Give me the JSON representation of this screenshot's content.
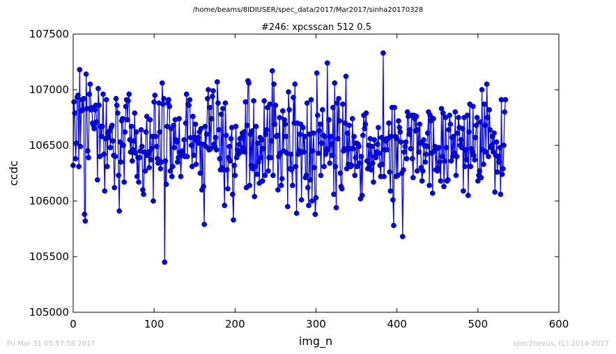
{
  "suptitle": "/home/beams/8IDIUSER/spec_data/2017/Mar2017/sinha20170328",
  "footer": {
    "left": "Fri Mar 31 05:57:58 2017",
    "right": "spec2nexus, (C) 2014-2017"
  },
  "colors": {
    "series": "#0000ff",
    "marker": "#0000ff",
    "footer": "#c0c0c0"
  },
  "chart_data": {
    "type": "line",
    "title": "#246: xpcsscan 512 0.5",
    "xlabel": "img_n",
    "ylabel": "ccdc",
    "xlim": [
      0,
      600
    ],
    "ylim": [
      105000,
      107500
    ],
    "xticks": [
      0,
      100,
      200,
      300,
      400,
      500,
      600
    ],
    "yticks": [
      105000,
      105500,
      106000,
      106500,
      107000,
      107500
    ],
    "grid": false,
    "marker": "circle",
    "series": [
      {
        "x_start": 0,
        "x_step": 1,
        "values": [
          106320,
          106890,
          106790,
          106380,
          106520,
          106930,
          106950,
          106310,
          107180,
          106490,
          106810,
          106910,
          106820,
          106920,
          105880,
          105820,
          107140,
          106830,
          106450,
          106390,
          106960,
          107050,
          106820,
          106840,
          106700,
          106680,
          106650,
          106820,
          106860,
          106710,
          106190,
          107010,
          106860,
          106400,
          106670,
          106580,
          106670,
          106960,
          106420,
          106090,
          106560,
          106910,
          106310,
          106610,
          106570,
          106630,
          106480,
          106660,
          106680,
          106540,
          106410,
          106120,
          106400,
          106920,
          106860,
          106790,
          106230,
          105910,
          106530,
          106350,
          106720,
          106740,
          106500,
          106170,
          106620,
          106850,
          106910,
          106730,
          106900,
          106960,
          106550,
          106440,
          106670,
          106360,
          106460,
          106540,
          106790,
          106430,
          106620,
          106220,
          106390,
          106170,
          106390,
          106450,
          106640,
          106490,
          106100,
          106060,
          106440,
          106270,
          106620,
          106760,
          106410,
          106440,
          106300,
          106730,
          106370,
          106470,
          106580,
          106000,
          106890,
          106950,
          106580,
          106490,
          106380,
          106340,
          106880,
          106620,
          106290,
          106350,
          107060,
          106870,
          106920,
          105450,
          106360,
          106150,
          106670,
          106880,
          106910,
          106850,
          106270,
          106650,
          106220,
          106310,
          106680,
          106480,
          106730,
          106550,
          106530,
          106350,
          106390,
          106740,
          106440,
          106220,
          106410,
          106450,
          106420,
          106550,
          106400,
          106700,
          106960,
          106400,
          106870,
          106860,
          106910,
          106570,
          106500,
          106310,
          106760,
          106410,
          106570,
          106690,
          106330,
          106540,
          106570,
          106520,
          106620,
          106250,
          106650,
          106100,
          106510,
          106130,
          105790,
          106670,
          106490,
          106600,
          106920,
          107000,
          106460,
          106840,
          106470,
          106740,
          106940,
          106990,
          106510,
          106490,
          106570,
          106460,
          107070,
          106880,
          106640,
          106380,
          106280,
          106780,
          106300,
          106830,
          106280,
          105960,
          106880,
          106590,
          106280,
          106110,
          106390,
          106490,
          106360,
          106560,
          106660,
          106060,
          105830,
          106320,
          106230,
          106670,
          106390,
          106460,
          106420,
          106510,
          106560,
          106440,
          106570,
          106610,
          106480,
          106620,
          106440,
          106890,
          106120,
          106680,
          107080,
          107060,
          106140,
          106600,
          106320,
          106630,
          106290,
          106900,
          106040,
          106310,
          106670,
          106240,
          106520,
          106350,
          106160,
          106570,
          106390,
          106550,
          106180,
          106470,
          106900,
          106230,
          106600,
          106640,
          106840,
          106270,
          106390,
          106870,
          106390,
          106540,
          107170,
          106230,
          107050,
          106690,
          106860,
          106580,
          106590,
          106100,
          106400,
          106750,
          106430,
          106140,
          106200,
          106810,
          106450,
          106730,
          106690,
          106580,
          106430,
          105950,
          106980,
          106820,
          106290,
          106420,
          106280,
          106140,
          106930,
          106700,
          107050,
          106310,
          105890,
          106700,
          106420,
          106450,
          106600,
          106690,
          106010,
          106440,
          106660,
          106440,
          106580,
          106210,
          106230,
          106880,
          106120,
          105960,
          106600,
          106190,
          106910,
          106000,
          106450,
          106610,
          106300,
          105880,
          106030,
          107150,
          106770,
          106430,
          106630,
          106690,
          106230,
          106520,
          106820,
          106590,
          106310,
          106580,
          106420,
          106450,
          107240,
          106470,
          106730,
          106340,
          106580,
          106510,
          106410,
          106840,
          106060,
          107060,
          106310,
          105940,
          106880,
          106560,
          106920,
          106720,
          106250,
          106130,
          106110,
          106870,
          106450,
          106470,
          106700,
          107120,
          106290,
          106610,
          106330,
          106680,
          106470,
          106310,
          106320,
          106740,
          106470,
          106580,
          106230,
          106390,
          106520,
          106310,
          106510,
          106490,
          106340,
          106020,
          106400,
          106050,
          106590,
          106770,
          106650,
          106690,
          106790,
          106360,
          106290,
          106500,
          106320,
          106560,
          106280,
          106490,
          106340,
          106170,
          106550,
          106400,
          106390,
          106440,
          106510,
          106660,
          106430,
          106320,
          106220,
          106570,
          106330,
          107330,
          106220,
          106460,
          106540,
          106560,
          106460,
          106560,
          106700,
          106260,
          106090,
          106580,
          106840,
          106010,
          105780,
          106840,
          106580,
          106220,
          106560,
          106230,
          106720,
          106660,
          106620,
          106530,
          106250,
          105680,
          106280,
          106440,
          106490,
          106530,
          106380,
          106800,
          106760,
          106600,
          106640,
          106470,
          106770,
          106380,
          106210,
          106770,
          106740,
          106630,
          106760,
          106270,
          106640,
          106440,
          106690,
          106520,
          106300,
          106180,
          106270,
          106550,
          106500,
          106350,
          106420,
          106490,
          106610,
          106800,
          106140,
          106770,
          106720,
          106430,
          106070,
          106740,
          106450,
          106490,
          106280,
          106470,
          106270,
          106300,
          106480,
          106350,
          106180,
          106830,
          106400,
          106790,
          106130,
          106360,
          106750,
          106480,
          106180,
          106190,
          106640,
          106770,
          106690,
          106360,
          106570,
          106400,
          106580,
          106430,
          106800,
          106230,
          106400,
          106610,
          106750,
          106660,
          106500,
          106550,
          106480,
          106650,
          106090,
          106750,
          106310,
          106460,
          106370,
          106770,
          106050,
          106620,
          106870,
          106310,
          106470,
          106440,
          106850,
          106410,
          106370,
          106570,
          106680,
          106750,
          106180,
          106230,
          106270,
          106710,
          106210,
          107000,
          106460,
          106330,
          106870,
          106680,
          106440,
          107050,
          106750,
          106400,
          106820,
          106640,
          106480,
          106500,
          106580,
          106440,
          106610,
          106080,
          106410,
          106530,
          106260,
          106400,
          106350,
          106480,
          106060,
          106910,
          106240,
          106290,
          106500,
          106800,
          106910
        ]
      }
    ]
  }
}
